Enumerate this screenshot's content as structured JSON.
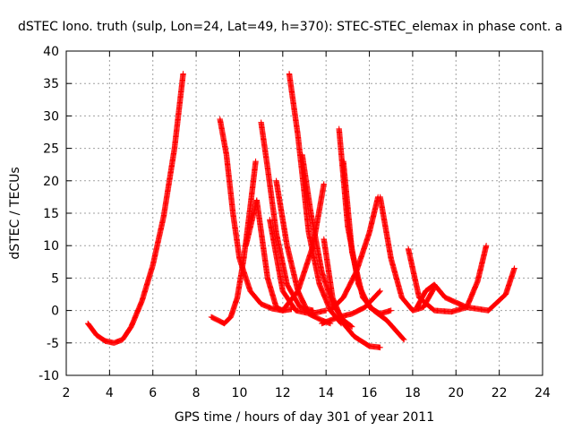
{
  "chart_data": {
    "type": "scatter",
    "title": "dSTEC Iono. truth (sulp, Lon=24, Lat=49, h=370): STEC-STEC_elemax in phase cont. a",
    "xlabel": "GPS time / hours of day 301 of year 2011",
    "ylabel": "dSTEC  / TECUs",
    "xlim": [
      2,
      24
    ],
    "ylim": [
      -10,
      40
    ],
    "xticks": [
      "2",
      "4",
      "6",
      "8",
      "10",
      "12",
      "14",
      "16",
      "18",
      "20",
      "22",
      "24"
    ],
    "yticks": [
      "-10",
      "-5",
      "0",
      "5",
      "10",
      "15",
      "20",
      "25",
      "30",
      "35",
      "40"
    ],
    "grid": true,
    "marker": "+",
    "color": "#ff0000",
    "series": [
      {
        "x": [
          3.0,
          3.4,
          3.8,
          4.2,
          4.6,
          5.0,
          5.5,
          6.0,
          6.5,
          7.0,
          7.4
        ],
        "y": [
          -2.0,
          -3.8,
          -4.7,
          -5.0,
          -4.5,
          -2.5,
          1.5,
          7.0,
          14.5,
          25.0,
          36.5
        ]
      },
      {
        "x": [
          8.7,
          9.0,
          9.3,
          9.6,
          9.9,
          10.2,
          10.5,
          10.75
        ],
        "y": [
          -1.0,
          -1.5,
          -2.0,
          -1.0,
          2.0,
          8.0,
          16.0,
          23.0
        ]
      },
      {
        "x": [
          9.1,
          9.4,
          9.7,
          10.0,
          10.5,
          11.0,
          11.5,
          12.0
        ],
        "y": [
          29.5,
          24.0,
          15.0,
          8.0,
          3.0,
          1.0,
          0.3,
          0.0
        ]
      },
      {
        "x": [
          10.3,
          10.8,
          11.3,
          11.7,
          12.0,
          12.4
        ],
        "y": [
          10.0,
          17.0,
          5.0,
          0.5,
          0.0,
          0.2
        ]
      },
      {
        "x": [
          11.0,
          11.3,
          11.7,
          12.2,
          12.8,
          13.4
        ],
        "y": [
          29.0,
          22.0,
          12.0,
          4.0,
          0.5,
          0.0
        ]
      },
      {
        "x": [
          11.7,
          12.2,
          12.7,
          13.2,
          13.8,
          14.2
        ],
        "y": [
          20.0,
          10.0,
          3.0,
          -0.5,
          -1.5,
          -2.0
        ]
      },
      {
        "x": [
          11.4,
          12.0,
          12.6,
          13.3,
          14.0
        ],
        "y": [
          14.0,
          3.0,
          0.0,
          -0.5,
          0.0
        ]
      },
      {
        "x": [
          12.3,
          12.7,
          13.2,
          13.7,
          14.2,
          14.7
        ],
        "y": [
          36.5,
          27.0,
          12.0,
          4.0,
          0.0,
          -2.0
        ]
      },
      {
        "x": [
          12.9,
          13.3,
          13.8,
          14.3,
          14.8,
          15.2
        ],
        "y": [
          24.0,
          15.0,
          6.0,
          1.0,
          -1.5,
          -2.5
        ]
      },
      {
        "x": [
          12.0,
          12.7,
          13.4,
          13.9
        ],
        "y": [
          0.0,
          3.0,
          10.0,
          19.5
        ]
      },
      {
        "x": [
          13.9,
          14.3,
          14.8,
          15.3,
          16.0,
          16.5
        ],
        "y": [
          11.0,
          2.0,
          -2.0,
          -4.0,
          -5.5,
          -5.7
        ]
      },
      {
        "x": [
          14.6,
          15.0,
          15.5,
          16.0,
          16.5,
          17.0
        ],
        "y": [
          28.0,
          13.0,
          4.0,
          0.5,
          -0.5,
          0.0
        ]
      },
      {
        "x": [
          14.8,
          15.2,
          15.7,
          16.2,
          16.8,
          17.6
        ],
        "y": [
          23.0,
          9.0,
          2.0,
          0.0,
          -1.5,
          -4.5
        ]
      },
      {
        "x": [
          14.2,
          14.8,
          15.4,
          16.0,
          16.4
        ],
        "y": [
          0.0,
          2.0,
          6.0,
          12.0,
          17.5
        ]
      },
      {
        "x": [
          13.8,
          14.6,
          15.2,
          15.8,
          16.5
        ],
        "y": [
          -2.0,
          -1.0,
          -0.5,
          0.5,
          3.0
        ]
      },
      {
        "x": [
          16.5,
          17.0,
          17.5,
          18.0,
          18.5,
          19.0
        ],
        "y": [
          17.5,
          8.0,
          2.0,
          0.0,
          0.5,
          3.5
        ]
      },
      {
        "x": [
          17.8,
          18.3,
          19.0,
          19.8,
          20.5,
          21.0,
          21.4
        ],
        "y": [
          9.5,
          2.0,
          0.0,
          -0.2,
          0.5,
          4.5,
          10.0
        ]
      },
      {
        "x": [
          18.2,
          18.6,
          19.0,
          19.5,
          20.5,
          21.5,
          22.3,
          22.7
        ],
        "y": [
          0.5,
          3.0,
          4.0,
          2.0,
          0.5,
          0.0,
          2.5,
          6.5
        ]
      }
    ]
  }
}
